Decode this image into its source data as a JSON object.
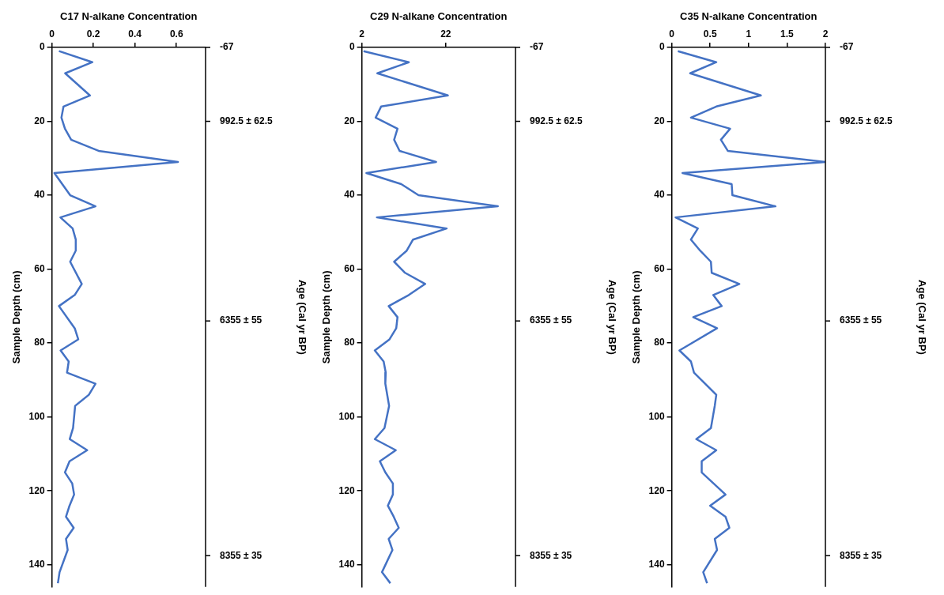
{
  "chart_data": [
    {
      "type": "line",
      "xlabel": "C17 N-alkane Concentration",
      "ylabel": "Sample Depth (cm)",
      "y2label": "Age (Cal yr BP)",
      "series": [
        {
          "color": "#4472c4",
          "x": [
            0.034,
            0.195,
            0.064,
            0.183,
            0.056,
            0.046,
            0.063,
            0.093,
            0.225,
            0.607,
            0.012,
            0.088,
            0.21,
            0.041,
            0.1,
            0.115,
            0.115,
            0.088,
            0.144,
            0.11,
            0.034,
            0.11,
            0.127,
            0.042,
            0.081,
            0.073,
            0.21,
            0.178,
            0.112,
            0.102,
            0.086,
            0.17,
            0.085,
            0.063,
            0.098,
            0.107,
            0.085,
            0.068,
            0.105,
            0.068,
            0.076,
            0.037,
            0.029
          ],
          "values": [
            1,
            4,
            7,
            13,
            16,
            19,
            22,
            25,
            28,
            31,
            34,
            40,
            43,
            46,
            49,
            52,
            55,
            58,
            64,
            67,
            70,
            76,
            79,
            82,
            85,
            88,
            91,
            94,
            97,
            103,
            106,
            109,
            112,
            115,
            118,
            121,
            124,
            127,
            130,
            133,
            136,
            142,
            145
          ]
        }
      ],
      "xlim": [
        0,
        0.74
      ],
      "xticks": [
        0,
        0.2,
        0.4,
        0.6
      ],
      "ylim": [
        146,
        0
      ],
      "yticks": [
        0,
        20,
        40,
        60,
        80,
        100,
        120,
        140
      ],
      "annotations": [
        "-67",
        "992.5 ± 62.5",
        "6355 ± 55",
        "8355 ± 35"
      ],
      "grid": false,
      "legend": false,
      "marker": "none"
    },
    {
      "type": "line",
      "xlabel": "C29 N-alkane Concentration",
      "ylabel": "Sample Depth (cm)",
      "y2label": "Age (Cal yr BP)",
      "series": [
        {
          "color": "#4472c4",
          "x": [
            2.4,
            13.2,
            5.7,
            22.5,
            6.6,
            5.3,
            10.5,
            9.7,
            11.0,
            19.7,
            3.1,
            11.4,
            15.5,
            34.4,
            5.6,
            22.2,
            14.2,
            12.7,
            9.7,
            12.3,
            17.1,
            13.2,
            8.4,
            10.5,
            10.2,
            8.6,
            5.1,
            7.2,
            7.7,
            7.6,
            8.5,
            7.4,
            5.1,
            10.1,
            6.3,
            7.6,
            9.4,
            9.4,
            8.2,
            9.6,
            10.8,
            8.4,
            9.3,
            6.8,
            8.8
          ],
          "values": [
            1,
            4,
            7,
            13,
            16,
            19,
            22,
            25,
            28,
            31,
            34,
            37,
            40,
            43,
            46,
            49,
            52,
            55,
            58,
            61,
            64,
            67,
            70,
            73,
            76,
            79,
            82,
            85,
            88,
            91,
            97,
            103,
            106,
            109,
            112,
            115,
            118,
            121,
            124,
            127,
            130,
            133,
            136,
            142,
            145
          ]
        }
      ],
      "xlim": [
        2,
        38.6
      ],
      "xticks": [
        2,
        22
      ],
      "ylim": [
        146,
        0
      ],
      "yticks": [
        0,
        20,
        40,
        60,
        80,
        100,
        120,
        140
      ],
      "annotations": [
        "-67",
        "992.5 ± 62.5",
        "6355 ± 55",
        "8355 ± 35"
      ],
      "grid": false,
      "legend": false,
      "marker": "none"
    },
    {
      "type": "line",
      "xlabel": "C35 N-alkane Concentration",
      "ylabel": "Sample Depth (cm)",
      "y2label": "Age (Cal yr BP)",
      "series": [
        {
          "color": "#4472c4",
          "x": [
            0.08,
            0.58,
            0.24,
            1.16,
            0.58,
            0.25,
            0.76,
            0.64,
            0.73,
            2.0,
            0.14,
            0.78,
            0.79,
            1.35,
            0.05,
            0.34,
            0.25,
            0.37,
            0.51,
            0.52,
            0.88,
            0.54,
            0.65,
            0.28,
            0.59,
            0.1,
            0.25,
            0.29,
            0.58,
            0.56,
            0.51,
            0.32,
            0.58,
            0.39,
            0.39,
            0.7,
            0.5,
            0.7,
            0.75,
            0.56,
            0.59,
            0.41,
            0.46
          ],
          "values": [
            1,
            4,
            7,
            13,
            16,
            19,
            22,
            25,
            28,
            31,
            34,
            37,
            40,
            43,
            46,
            49,
            52,
            55,
            58,
            61,
            64,
            67,
            70,
            73,
            76,
            82,
            85,
            88,
            94,
            97,
            103,
            106,
            109,
            112,
            115,
            121,
            124,
            127,
            130,
            133,
            136,
            142,
            145
          ]
        }
      ],
      "xlim": [
        0,
        2
      ],
      "xticks": [
        0,
        0.5,
        1,
        1.5,
        2
      ],
      "ylim": [
        146,
        0
      ],
      "yticks": [
        0,
        20,
        40,
        60,
        80,
        100,
        120,
        140
      ],
      "annotations": [
        "-67",
        "992.5 ± 62.5",
        "6355 ± 55",
        "8355 ± 35"
      ],
      "grid": false,
      "legend": false,
      "marker": "none"
    }
  ]
}
